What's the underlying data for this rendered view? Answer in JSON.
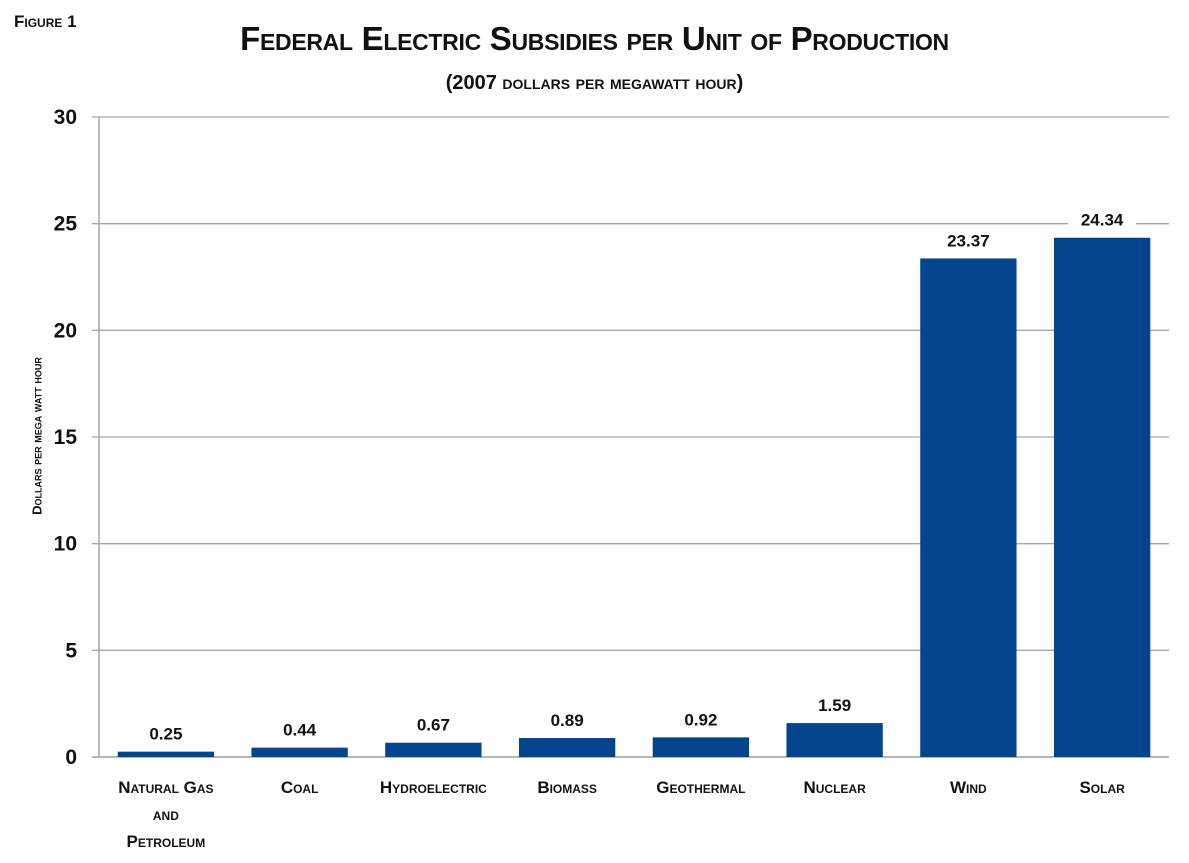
{
  "figure_label": "Figure 1",
  "chart_data": {
    "type": "bar",
    "title": "Federal Electric Subsidies per Unit of Production",
    "subtitle": "(2007 dollars per megawatt hour)",
    "xlabel": "",
    "ylabel": "Dollars per mega watt hour",
    "ylim": [
      0,
      30
    ],
    "yticks": [
      0,
      5,
      10,
      15,
      20,
      25,
      30
    ],
    "grid": true,
    "categories": [
      [
        "Natural Gas",
        "and",
        "Petroleum"
      ],
      [
        "Coal"
      ],
      [
        "Hydroelectric"
      ],
      [
        "Biomass"
      ],
      [
        "Geothermal"
      ],
      [
        "Nuclear"
      ],
      [
        "Wind"
      ],
      [
        "Solar"
      ]
    ],
    "values": [
      0.25,
      0.44,
      0.67,
      0.89,
      0.92,
      1.59,
      23.37,
      24.34
    ],
    "data_labels": [
      "0.25",
      "0.44",
      "0.67",
      "0.89",
      "0.92",
      "1.59",
      "23.37",
      "24.34"
    ],
    "colors": {
      "bar": "#03458C",
      "grid": "#A6A6A6",
      "text": "#111111"
    }
  }
}
